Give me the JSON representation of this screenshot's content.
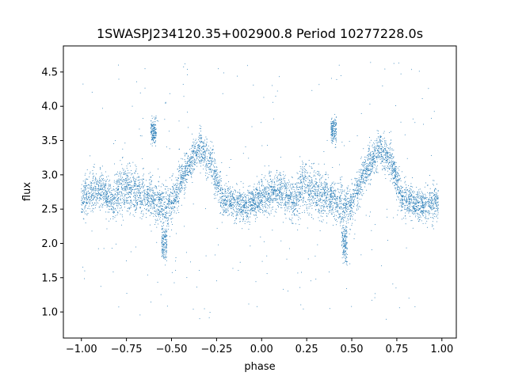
{
  "chart_data": {
    "type": "scatter",
    "title": "1SWASPJ234120.35+002900.8 Period 10277228.0s",
    "xlabel": "phase",
    "ylabel": "flux",
    "xlim": [
      -1.1,
      1.08
    ],
    "ylim": [
      0.62,
      4.88
    ],
    "xticks": [
      -1.0,
      -0.75,
      -0.5,
      -0.25,
      0.0,
      0.25,
      0.5,
      0.75,
      1.0
    ],
    "xtick_labels": [
      "−1.00",
      "−0.75",
      "−0.50",
      "−0.25",
      "0.00",
      "0.25",
      "0.50",
      "0.75",
      "1.00"
    ],
    "yticks": [
      1.0,
      1.5,
      2.0,
      2.5,
      3.0,
      3.5,
      4.0,
      4.5
    ],
    "ytick_labels": [
      "1.0",
      "1.5",
      "2.0",
      "2.5",
      "3.0",
      "3.5",
      "4.0",
      "4.5"
    ],
    "grid": false,
    "point_color": "#1f77b4",
    "point_size": 0.5,
    "series": [
      {
        "profile": [
          {
            "x": -1.0,
            "y": 2.65,
            "spread": 0.28
          },
          {
            "x": -0.9,
            "y": 2.8,
            "spread": 0.25
          },
          {
            "x": -0.82,
            "y": 2.6,
            "spread": 0.25
          },
          {
            "x": -0.78,
            "y": 2.85,
            "spread": 0.35
          },
          {
            "x": -0.7,
            "y": 2.75,
            "spread": 0.3
          },
          {
            "x": -0.62,
            "y": 2.65,
            "spread": 0.25
          },
          {
            "x": -0.55,
            "y": 2.55,
            "spread": 0.3
          },
          {
            "x": -0.5,
            "y": 2.55,
            "spread": 0.3
          },
          {
            "x": -0.45,
            "y": 2.9,
            "spread": 0.25
          },
          {
            "x": -0.35,
            "y": 3.4,
            "spread": 0.22
          },
          {
            "x": -0.28,
            "y": 3.2,
            "spread": 0.25
          },
          {
            "x": -0.22,
            "y": 2.65,
            "spread": 0.25
          },
          {
            "x": -0.1,
            "y": 2.55,
            "spread": 0.2
          },
          {
            "x": 0.0,
            "y": 2.65,
            "spread": 0.25
          },
          {
            "x": 0.1,
            "y": 2.8,
            "spread": 0.25
          },
          {
            "x": 0.18,
            "y": 2.6,
            "spread": 0.25
          },
          {
            "x": 0.22,
            "y": 2.85,
            "spread": 0.35
          },
          {
            "x": 0.3,
            "y": 2.75,
            "spread": 0.3
          },
          {
            "x": 0.38,
            "y": 2.65,
            "spread": 0.25
          },
          {
            "x": 0.45,
            "y": 2.55,
            "spread": 0.3
          },
          {
            "x": 0.5,
            "y": 2.55,
            "spread": 0.3
          },
          {
            "x": 0.55,
            "y": 2.9,
            "spread": 0.25
          },
          {
            "x": 0.65,
            "y": 3.4,
            "spread": 0.22
          },
          {
            "x": 0.72,
            "y": 3.2,
            "spread": 0.25
          },
          {
            "x": 0.78,
            "y": 2.65,
            "spread": 0.25
          },
          {
            "x": 0.9,
            "y": 2.55,
            "spread": 0.2
          },
          {
            "x": 0.98,
            "y": 2.6,
            "spread": 0.25
          }
        ],
        "clumps": [
          {
            "x": -0.6,
            "y": 3.65,
            "spread": 0.15,
            "width": 0.015
          },
          {
            "x": 0.4,
            "y": 3.65,
            "spread": 0.15,
            "width": 0.015
          },
          {
            "x": -0.54,
            "y": 2.0,
            "spread": 0.25,
            "width": 0.015
          },
          {
            "x": 0.46,
            "y": 2.0,
            "spread": 0.25,
            "width": 0.015
          }
        ],
        "outlier_range": [
          0.85,
          4.65
        ]
      }
    ]
  }
}
